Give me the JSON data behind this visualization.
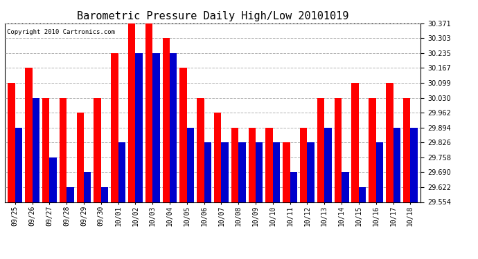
{
  "title": "Barometric Pressure Daily High/Low 20101019",
  "copyright": "Copyright 2010 Cartronics.com",
  "dates": [
    "09/25",
    "09/26",
    "09/27",
    "09/28",
    "09/29",
    "09/30",
    "10/01",
    "10/02",
    "10/03",
    "10/04",
    "10/05",
    "10/06",
    "10/07",
    "10/08",
    "10/09",
    "10/10",
    "10/11",
    "10/12",
    "10/13",
    "10/14",
    "10/15",
    "10/16",
    "10/17",
    "10/18"
  ],
  "highs": [
    30.099,
    30.167,
    30.03,
    30.03,
    29.962,
    30.03,
    30.235,
    30.371,
    30.371,
    30.303,
    30.167,
    30.03,
    29.962,
    29.894,
    29.894,
    29.894,
    29.826,
    29.894,
    30.03,
    30.03,
    30.099,
    30.03,
    30.099,
    30.03
  ],
  "lows": [
    29.894,
    30.03,
    29.758,
    29.622,
    29.69,
    29.622,
    29.826,
    30.235,
    30.235,
    30.235,
    29.894,
    29.826,
    29.826,
    29.826,
    29.826,
    29.826,
    29.69,
    29.826,
    29.894,
    29.69,
    29.622,
    29.826,
    29.894,
    29.894
  ],
  "high_color": "#ff0000",
  "low_color": "#0000cc",
  "bg_color": "#ffffff",
  "grid_color": "#b0b0b0",
  "ymin": 29.554,
  "ymax": 30.371,
  "yticks": [
    29.554,
    29.622,
    29.69,
    29.758,
    29.826,
    29.894,
    29.962,
    30.03,
    30.099,
    30.167,
    30.235,
    30.303,
    30.371
  ],
  "bar_width": 0.42,
  "title_fontsize": 11,
  "tick_fontsize": 7,
  "copyright_fontsize": 6.5
}
